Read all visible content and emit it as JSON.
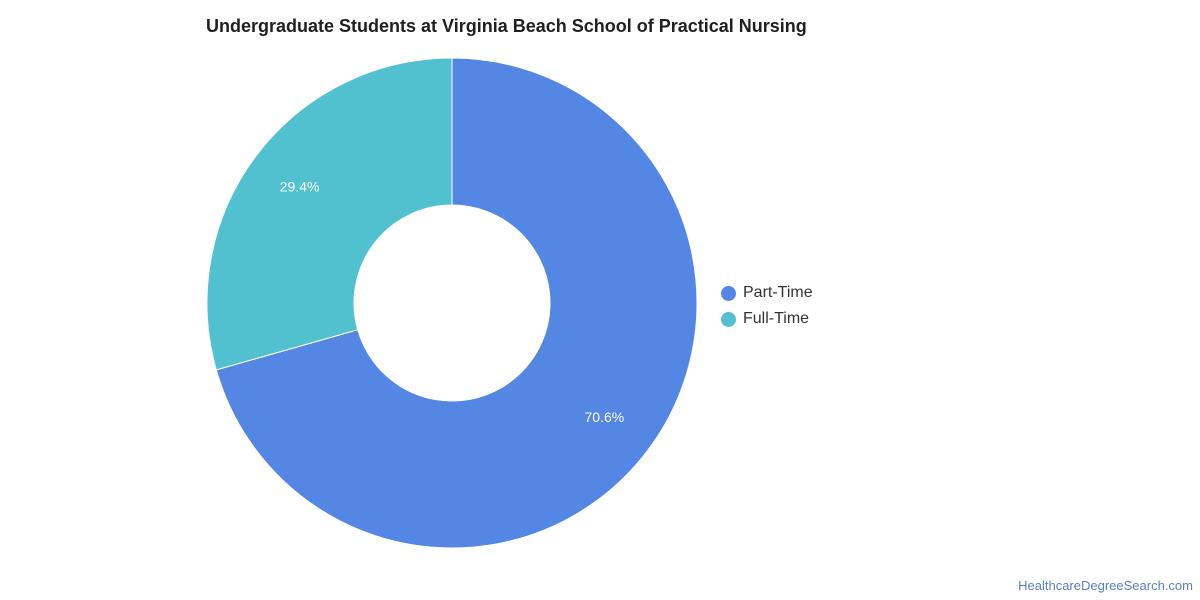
{
  "chart_data": {
    "type": "pie",
    "variant": "donut",
    "title": "Undergraduate Students at Virginia Beach School of Practical Nursing",
    "categories": [
      "Part-Time",
      "Full-Time"
    ],
    "values": [
      70.6,
      29.4
    ],
    "value_labels": [
      "70.6%",
      "29.4%"
    ],
    "colors": [
      "#5486e3",
      "#52c1cf"
    ],
    "legend_placement": "right"
  },
  "footer": {
    "source_link": "HealthcareDegreeSearch.com"
  }
}
